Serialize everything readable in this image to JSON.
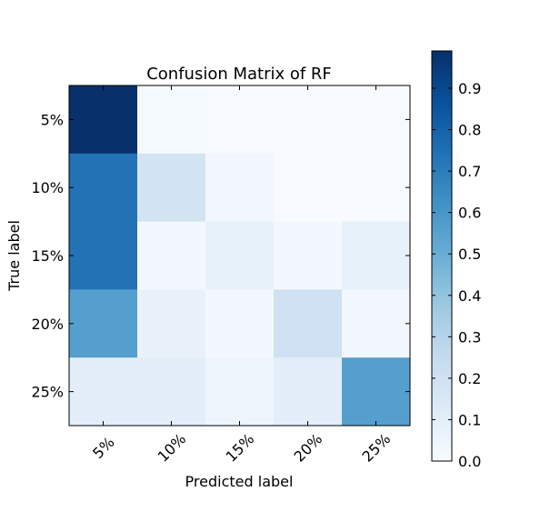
{
  "chart_data": {
    "type": "heatmap",
    "title": "Confusion Matrix of RF",
    "xlabel": "Predicted label",
    "ylabel": "True label",
    "x_categories": [
      "5%",
      "10%",
      "15%",
      "20%",
      "25%"
    ],
    "y_categories": [
      "5%",
      "10%",
      "15%",
      "20%",
      "25%"
    ],
    "values": [
      [
        0.99,
        0.01,
        0.0,
        0.0,
        0.0
      ],
      [
        0.74,
        0.18,
        0.03,
        0.0,
        0.0
      ],
      [
        0.74,
        0.02,
        0.08,
        0.02,
        0.08
      ],
      [
        0.56,
        0.07,
        0.02,
        0.2,
        0.03
      ],
      [
        0.1,
        0.1,
        0.05,
        0.1,
        0.56
      ]
    ],
    "colormap": "Blues",
    "color_range": [
      0.0,
      0.99
    ],
    "colorbar_ticks": [
      "0.0",
      "0.1",
      "0.2",
      "0.3",
      "0.4",
      "0.5",
      "0.6",
      "0.7",
      "0.8",
      "0.9"
    ],
    "colorbar_tick_values": [
      0.0,
      0.1,
      0.2,
      0.3,
      0.4,
      0.5,
      0.6,
      0.7,
      0.8,
      0.9
    ],
    "x_tick_rotation": 45,
    "grid": false
  }
}
